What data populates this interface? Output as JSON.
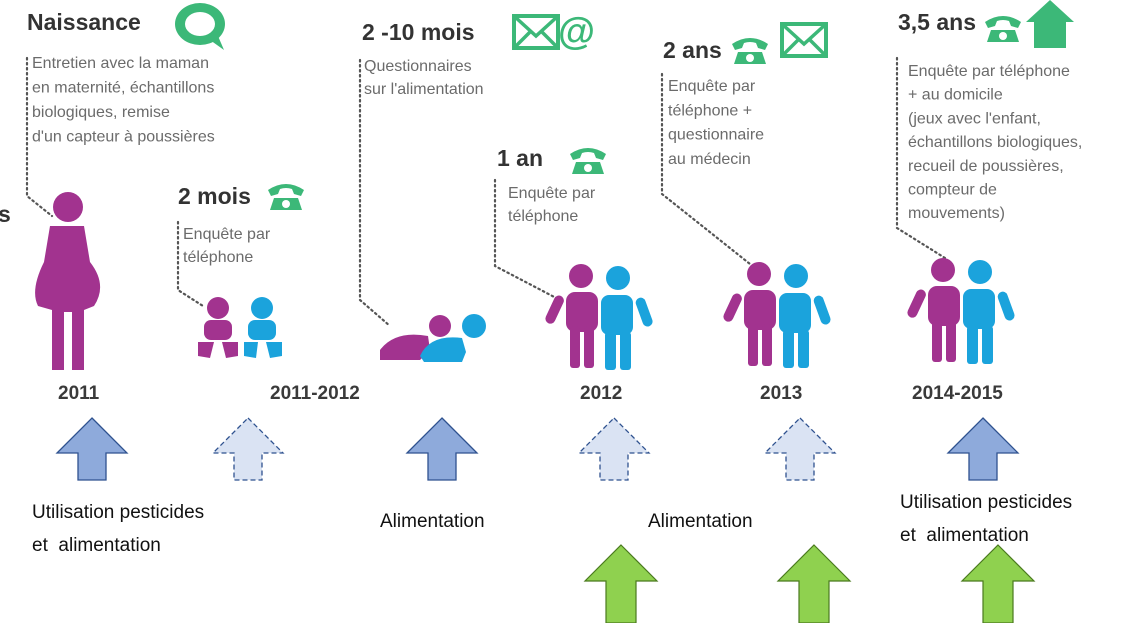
{
  "edge_fragment": "s",
  "stages": [
    {
      "title": "Naissance",
      "description": [
        "Entretien avec la maman",
        "en maternité, échantillons",
        "biologiques, remise",
        "d'un capteur à poussières"
      ]
    },
    {
      "title": "2 mois",
      "description": [
        "Enquête par",
        "téléphone"
      ]
    },
    {
      "title": "2 -10 mois",
      "description": [
        "Questionnaires",
        "sur l'alimentation"
      ]
    },
    {
      "title": "1 an",
      "description": [
        "Enquête par",
        "téléphone"
      ]
    },
    {
      "title": "2 ans",
      "description": [
        "Enquête par",
        "téléphone +",
        "questionnaire",
        "au médecin"
      ]
    },
    {
      "title": "3,5 ans",
      "description": [
        "Enquête par téléphone",
        "+ au domicile",
        "(jeux avec l'enfant,",
        "échantillons biologiques,",
        "recueil de poussières,",
        "compteur de",
        "mouvements)"
      ]
    }
  ],
  "years": [
    "2011",
    "2011-2012",
    "2012",
    "2013",
    "2014-2015"
  ],
  "notes": [
    [
      "Utilisation pesticides",
      "et  alimentation"
    ],
    [
      "Alimentation"
    ],
    [
      "Alimentation"
    ],
    [
      "Utilisation pesticides",
      "et  alimentation"
    ]
  ]
}
